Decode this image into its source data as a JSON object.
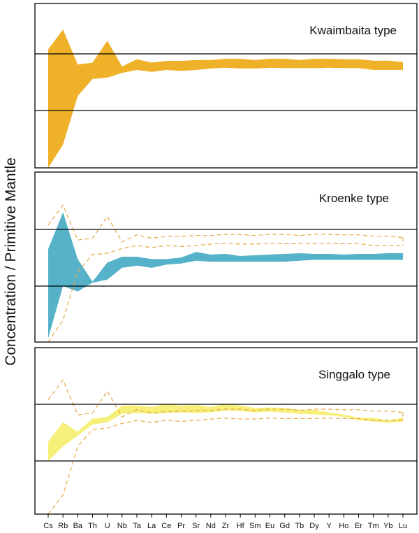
{
  "chart_data": {
    "type": "area",
    "ylabel": "Concentration / Primitive Mantle",
    "xlabel": "",
    "x_ticks": [
      "Cs",
      "Rb",
      "Ba",
      "Th",
      "U",
      "Nb",
      "Ta",
      "La",
      "Ce",
      "Pr",
      "Sr",
      "Nd",
      "Zr",
      "Hf",
      "Sm",
      "Eu",
      "Gd",
      "Tb",
      "Dy",
      "Y",
      "Ho",
      "Er",
      "Tm",
      "Yb",
      "Lu"
    ],
    "y_scale": "log",
    "ylim": [
      0.5,
      500
    ],
    "reference_lines": [
      10,
      100
    ],
    "panels": [
      {
        "title": "Kwaimbaita type",
        "fill_color": "#f0b12a",
        "band_upper": [
          120,
          270,
          65,
          70,
          170,
          60,
          80,
          70,
          75,
          75,
          78,
          78,
          82,
          82,
          78,
          82,
          82,
          78,
          82,
          82,
          80,
          80,
          76,
          76,
          72
        ],
        "band_lower": [
          0.5,
          2.5,
          18,
          36,
          38,
          46,
          52,
          48,
          52,
          50,
          52,
          55,
          57,
          55,
          55,
          57,
          56,
          56,
          56,
          57,
          56,
          56,
          52,
          52,
          52
        ],
        "reference_envelope": null
      },
      {
        "title": "Kroenke type",
        "fill_color": "#56b2c9",
        "band_upper": [
          45,
          200,
          30,
          12,
          26,
          33,
          33,
          30,
          30,
          32,
          40,
          36,
          37,
          34,
          35,
          36,
          37,
          38,
          37,
          37,
          36,
          37,
          37,
          38,
          38
        ],
        "band_lower": [
          1.2,
          10,
          8,
          11.5,
          13,
          21,
          23,
          21,
          24,
          25,
          28,
          27,
          27,
          27,
          27,
          27,
          27,
          28,
          29,
          29,
          29,
          29,
          29,
          29,
          29
        ],
        "reference_envelope": {
          "color": "#e8a848",
          "upper": [
            120,
            270,
            65,
            70,
            170,
            60,
            80,
            70,
            75,
            75,
            78,
            78,
            82,
            82,
            78,
            82,
            82,
            78,
            82,
            82,
            80,
            80,
            76,
            76,
            72
          ],
          "lower": [
            0.5,
            2.5,
            18,
            36,
            38,
            46,
            52,
            48,
            52,
            50,
            52,
            55,
            57,
            55,
            55,
            57,
            56,
            56,
            56,
            57,
            56,
            56,
            52,
            52,
            52
          ]
        }
      },
      {
        "title": "Singgalo type",
        "fill_color": "#f6f07a",
        "band_upper": [
          22,
          48,
          33,
          56,
          60,
          95,
          95,
          90,
          102,
          95,
          98,
          90,
          102,
          95,
          86,
          88,
          86,
          80,
          80,
          72,
          66,
          58,
          58,
          52,
          58
        ],
        "band_lower": [
          10,
          18,
          28,
          44,
          48,
          68,
          70,
          68,
          70,
          72,
          70,
          72,
          78,
          76,
          72,
          74,
          72,
          68,
          66,
          64,
          60,
          52,
          50,
          47,
          50
        ],
        "reference_envelope": {
          "color": "#e8a848",
          "upper": [
            120,
            270,
            65,
            70,
            170,
            60,
            80,
            70,
            75,
            75,
            78,
            78,
            82,
            82,
            78,
            82,
            82,
            78,
            82,
            82,
            80,
            80,
            76,
            76,
            72
          ],
          "lower": [
            0.5,
            2.5,
            18,
            36,
            38,
            46,
            52,
            48,
            52,
            50,
            52,
            55,
            57,
            55,
            55,
            57,
            56,
            56,
            56,
            57,
            56,
            56,
            52,
            52,
            52
          ]
        }
      }
    ]
  }
}
